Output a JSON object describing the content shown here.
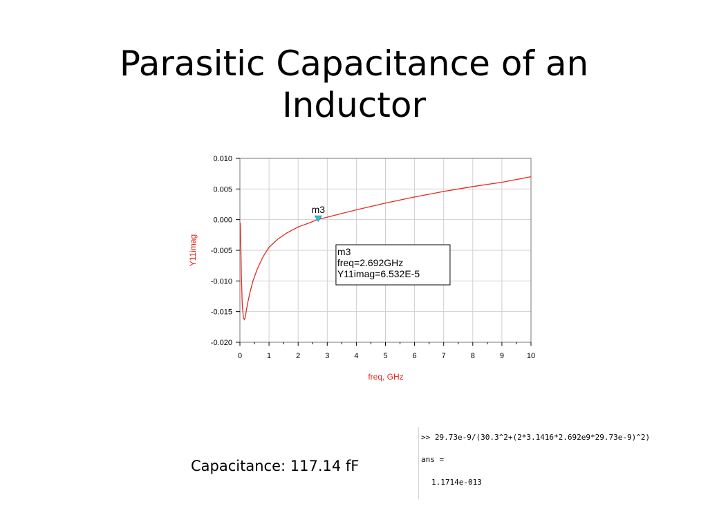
{
  "slide": {
    "title_line1": "Parasitic Capacitance of an",
    "title_line2": "Inductor",
    "caption": "Capacitance: 117.14 fF"
  },
  "console": {
    "command": ">> 29.73e-9/(30.3^2+(2*3.1416*2.692e9*29.73e-9)^2)",
    "ans_label": "ans =",
    "ans_value": "1.1714e-013"
  },
  "chart_data": {
    "type": "line",
    "xlabel": "freq, GHz",
    "ylabel": "Y11imag",
    "xlim": [
      0,
      10
    ],
    "ylim": [
      -0.02,
      0.01
    ],
    "x_ticks": [
      0,
      1,
      2,
      3,
      4,
      5,
      6,
      7,
      8,
      9,
      10
    ],
    "x_tick_labels": [
      "0",
      "1",
      "2",
      "3",
      "4",
      "5",
      "6",
      "7",
      "8",
      "9",
      "10"
    ],
    "y_ticks": [
      0.01,
      0.005,
      0.0,
      -0.005,
      -0.01,
      -0.015,
      -0.02
    ],
    "y_tick_labels": [
      "0.010",
      "0.005",
      "0.000",
      "-0.005",
      "-0.010",
      "-0.015",
      "-0.020"
    ],
    "grid": true,
    "series": [
      {
        "color": "#e8281e",
        "x": [
          0.01,
          0.03,
          0.05,
          0.08,
          0.12,
          0.15,
          0.18,
          0.22,
          0.27,
          0.35,
          0.45,
          0.6,
          0.8,
          1.0,
          1.3,
          1.6,
          2.0,
          2.4,
          2.692,
          3.0,
          3.5,
          4.0,
          5.0,
          6.0,
          7.0,
          8.0,
          9.0,
          10.0
        ],
        "y": [
          -0.0005,
          -0.004,
          -0.009,
          -0.014,
          -0.016,
          -0.0163,
          -0.016,
          -0.0148,
          -0.0135,
          -0.0118,
          -0.01,
          -0.008,
          -0.006,
          -0.0045,
          -0.0032,
          -0.0022,
          -0.0012,
          -0.0005,
          6.532e-05,
          0.0004,
          0.001,
          0.0016,
          0.0027,
          0.0037,
          0.0046,
          0.0054,
          0.0061,
          0.007
        ]
      }
    ],
    "marker": {
      "name": "m3",
      "x": 2.692,
      "y": 6.532e-05,
      "color": "#26c9d9",
      "box_line1": "m3",
      "box_line2": "freq=2.692GHz",
      "box_line3": "Y11imag=6.532E-5"
    }
  }
}
